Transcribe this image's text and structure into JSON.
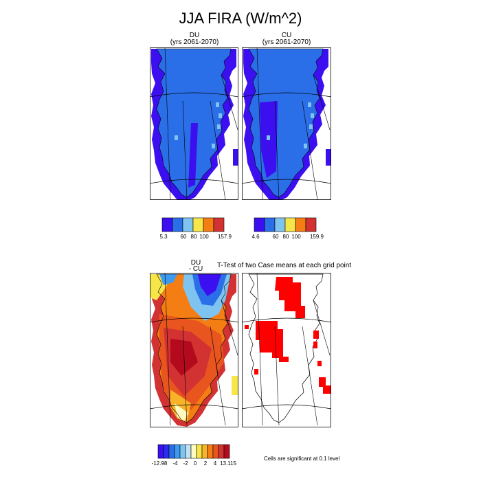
{
  "title": "JJA FIRA (W/m^2)",
  "panels": {
    "du": {
      "title_line1": "DU",
      "title_line2": "(yrs 2061-2070)"
    },
    "cu": {
      "title_line1": "CU",
      "title_line2": "(yrs 2061-2070)"
    },
    "diff": {
      "title_line1": "DU",
      "title_line2": "- CU"
    },
    "ttest": {
      "title": "T-Test of two Case means at each grid point"
    }
  },
  "colorbars": {
    "du": {
      "colors": [
        "#3b0ff0",
        "#2a6ee8",
        "#7fc4f0",
        "#f7e64a",
        "#f57e14",
        "#d23232"
      ],
      "tick_labels": [
        "5.3",
        "60",
        "80",
        "100",
        "157.9"
      ]
    },
    "cu": {
      "colors": [
        "#3b0ff0",
        "#2a6ee8",
        "#7fc4f0",
        "#f7e64a",
        "#f57e14",
        "#d23232"
      ],
      "tick_labels": [
        "4.6",
        "60",
        "80",
        "100",
        "159.9"
      ]
    },
    "diff": {
      "colors": [
        "#3b0ff0",
        "#2b2cf0",
        "#2a6ee8",
        "#3d9af0",
        "#7fc4f0",
        "#bfe3f5",
        "#fffac0",
        "#f7e64a",
        "#f7b429",
        "#f57e14",
        "#e9551e",
        "#d23232",
        "#b40a1e"
      ],
      "tick_labels": [
        "-12.98",
        "-4",
        "-2",
        "0",
        "2",
        "4",
        "13.115"
      ]
    }
  },
  "footnote": "Cells are significant at 0.1 level",
  "chart_data": [
    {
      "type": "heatmap",
      "title": "DU (yrs 2061-2070)",
      "variable": "JJA FIRA",
      "units": "W/m^2",
      "range": [
        5.3,
        157.9
      ],
      "levels": [
        60,
        80,
        100
      ],
      "dominant_values": "mostly below 60; outer margin ring lowest"
    },
    {
      "type": "heatmap",
      "title": "CU (yrs 2061-2070)",
      "variable": "JJA FIRA",
      "units": "W/m^2",
      "range": [
        4.6,
        159.9
      ],
      "levels": [
        60,
        80,
        100
      ],
      "dominant_values": "mostly below 60; outer margin ring lowest"
    },
    {
      "type": "heatmap",
      "title": "DU - CU",
      "variable": "JJA FIRA difference",
      "units": "W/m^2",
      "range": [
        -12.98,
        13.115
      ],
      "levels": [
        -4,
        -2,
        0,
        2,
        4
      ],
      "dominant_values": "negative in north-east, positive (2 to 13) over central and western ice sheet"
    },
    {
      "type": "heatmap",
      "title": "T-Test of two Case means at each grid point",
      "significance_level": 0.1,
      "significant_regions": [
        "north-central",
        "west-central interior",
        "small east-coast patches"
      ]
    }
  ]
}
